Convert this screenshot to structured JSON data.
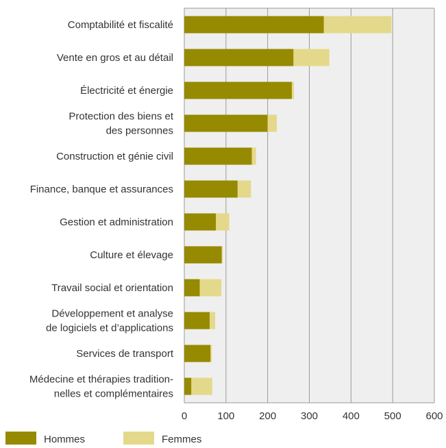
{
  "chart_data": {
    "type": "bar",
    "orientation": "horizontal",
    "stacked": true,
    "categories": [
      [
        "Comptabilité et fiscalité"
      ],
      [
        "Vente en gros et au détail"
      ],
      [
        "Électricité et énergie"
      ],
      [
        "Protection des biens et",
        "des personnes"
      ],
      [
        "Construction et génie civil"
      ],
      [
        "Finance, banque et assurances"
      ],
      [
        "Gestion et administration"
      ],
      [
        "Culture et élevage"
      ],
      [
        "Travail social et orientation"
      ],
      [
        "Développement et analyse",
        "de logiciels et d’applications"
      ],
      [
        "Services de transport"
      ],
      [
        "Médecine et thérapies tradition-",
        "nelles et complémentaires"
      ]
    ],
    "series": [
      {
        "name": "Hommes",
        "color": "#968a00",
        "values": [
          335,
          262,
          258,
          200,
          162,
          128,
          76,
          90,
          37,
          61,
          63,
          17
        ]
      },
      {
        "name": "Femmes",
        "color": "#e4d98a",
        "values": [
          162,
          86,
          5,
          22,
          10,
          32,
          32,
          2,
          52,
          13,
          3,
          50
        ]
      }
    ],
    "xlim": [
      0,
      600
    ],
    "xticks": [
      0,
      100,
      200,
      300,
      400,
      500,
      600
    ],
    "xtick_labels": [
      "0",
      "100",
      "200",
      "300",
      "400",
      "500",
      "600"
    ],
    "grid": "vertical",
    "legend_position": "bottom-left",
    "colors": {
      "plot_background": "#efefef",
      "gridline": "#9a9a9a",
      "frame": "#9a9a9a"
    }
  }
}
